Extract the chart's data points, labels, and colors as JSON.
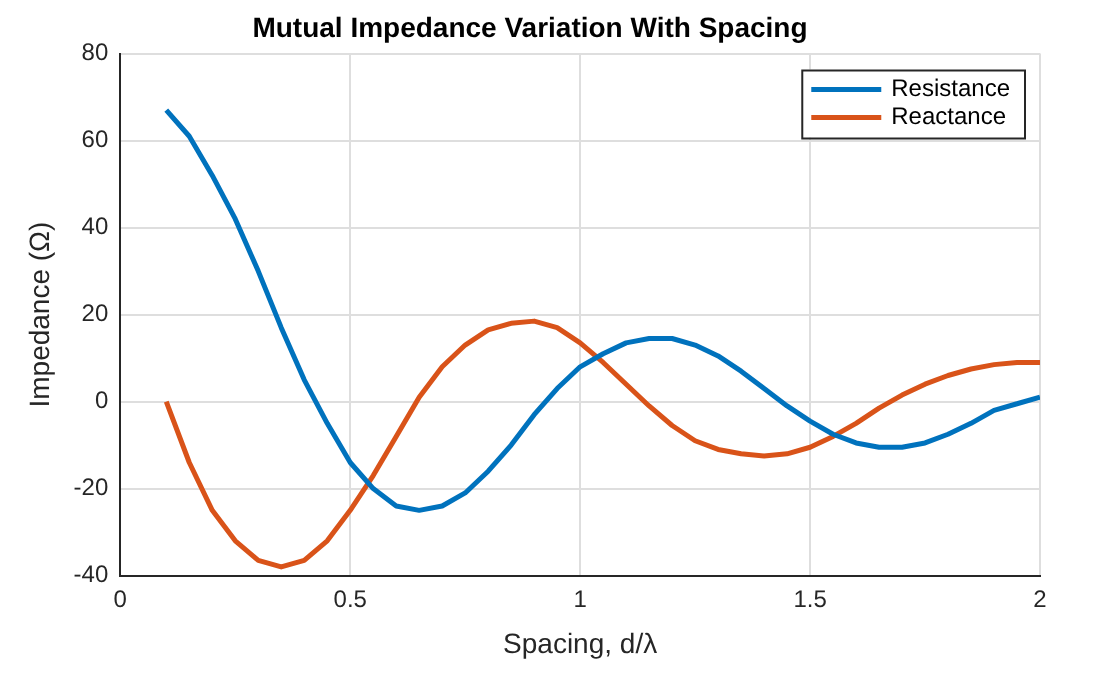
{
  "chart_data": {
    "type": "line",
    "title": "Mutual Impedance Variation With Spacing",
    "xlabel": "Spacing, d/λ",
    "ylabel": "Impedance (Ω)",
    "xlim": [
      0,
      2
    ],
    "xticks": [
      0,
      0.5,
      1,
      1.5,
      2
    ],
    "ylim": [
      -40,
      80
    ],
    "yticks": [
      -40,
      -20,
      0,
      20,
      40,
      60,
      80
    ],
    "grid": true,
    "legend": "top right",
    "marker": "none",
    "line_style": "solid",
    "x": [
      0.1,
      0.15,
      0.2,
      0.25,
      0.3,
      0.35,
      0.4,
      0.45,
      0.5,
      0.55,
      0.6,
      0.65,
      0.7,
      0.75,
      0.8,
      0.85,
      0.9,
      0.95,
      1.0,
      1.05,
      1.1,
      1.15,
      1.2,
      1.25,
      1.3,
      1.35,
      1.4,
      1.45,
      1.5,
      1.55,
      1.6,
      1.65,
      1.7,
      1.75,
      1.8,
      1.85,
      1.9,
      1.95,
      2.0
    ],
    "series": [
      {
        "name": "Resistance",
        "color": "#0072bd",
        "values": [
          67,
          61,
          52,
          42,
          30,
          17,
          5,
          -5,
          -14,
          -20,
          -24,
          -25,
          -24,
          -21,
          -16,
          -10,
          -3,
          3,
          8,
          11,
          13.5,
          14.5,
          14.5,
          13,
          10.5,
          7,
          3,
          -1,
          -4.5,
          -7.5,
          -9.5,
          -10.5,
          -10.5,
          -9.5,
          -7.5,
          -5,
          -2,
          -0.5,
          1
        ]
      },
      {
        "name": "Reactance",
        "color": "#d95319",
        "values": [
          0,
          -14,
          -25,
          -32,
          -36.5,
          -38,
          -36.5,
          -32,
          -25,
          -17,
          -8,
          1,
          8,
          13,
          16.5,
          18,
          18.5,
          17,
          13.5,
          9,
          4,
          -1,
          -5.5,
          -9,
          -11,
          -12,
          -12.5,
          -12,
          -10.5,
          -8,
          -5,
          -1.5,
          1.5,
          4,
          6,
          7.5,
          8.5,
          9,
          9
        ]
      }
    ]
  }
}
